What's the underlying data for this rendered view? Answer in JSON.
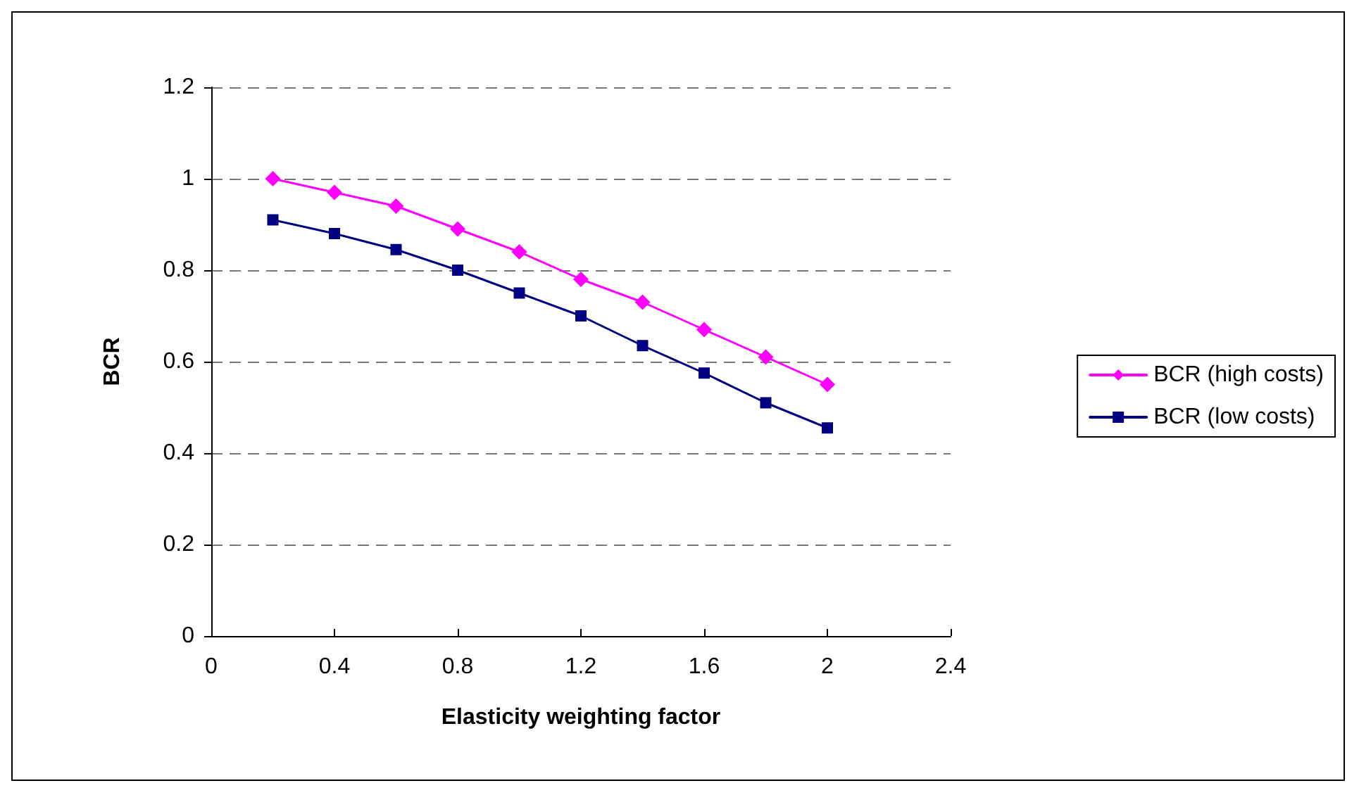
{
  "chart_data": {
    "type": "line",
    "xlabel": "Elasticity weighting factor",
    "ylabel": "BCR",
    "x": [
      0.2,
      0.4,
      0.6,
      0.8,
      1.0,
      1.2,
      1.4,
      1.6,
      1.8,
      2.0
    ],
    "series": [
      {
        "name": "BCR (high costs)",
        "color": "#ff00ff",
        "marker": "diamond",
        "values": [
          1.0,
          0.97,
          0.94,
          0.89,
          0.84,
          0.78,
          0.73,
          0.67,
          0.61,
          0.55
        ]
      },
      {
        "name": "BCR (low costs)",
        "color": "#000080",
        "marker": "square",
        "values": [
          0.91,
          0.88,
          0.845,
          0.8,
          0.75,
          0.7,
          0.635,
          0.575,
          0.51,
          0.455
        ]
      }
    ],
    "xlim": [
      0,
      2.4
    ],
    "xticks": [
      0,
      0.4,
      0.8,
      1.2,
      1.6,
      2,
      2.4
    ],
    "ylim": [
      0,
      1.2
    ],
    "yticks": [
      0,
      0.2,
      0.4,
      0.6,
      0.8,
      1,
      1.2
    ],
    "grid": "y",
    "legend": "right",
    "line_style": "solid"
  }
}
